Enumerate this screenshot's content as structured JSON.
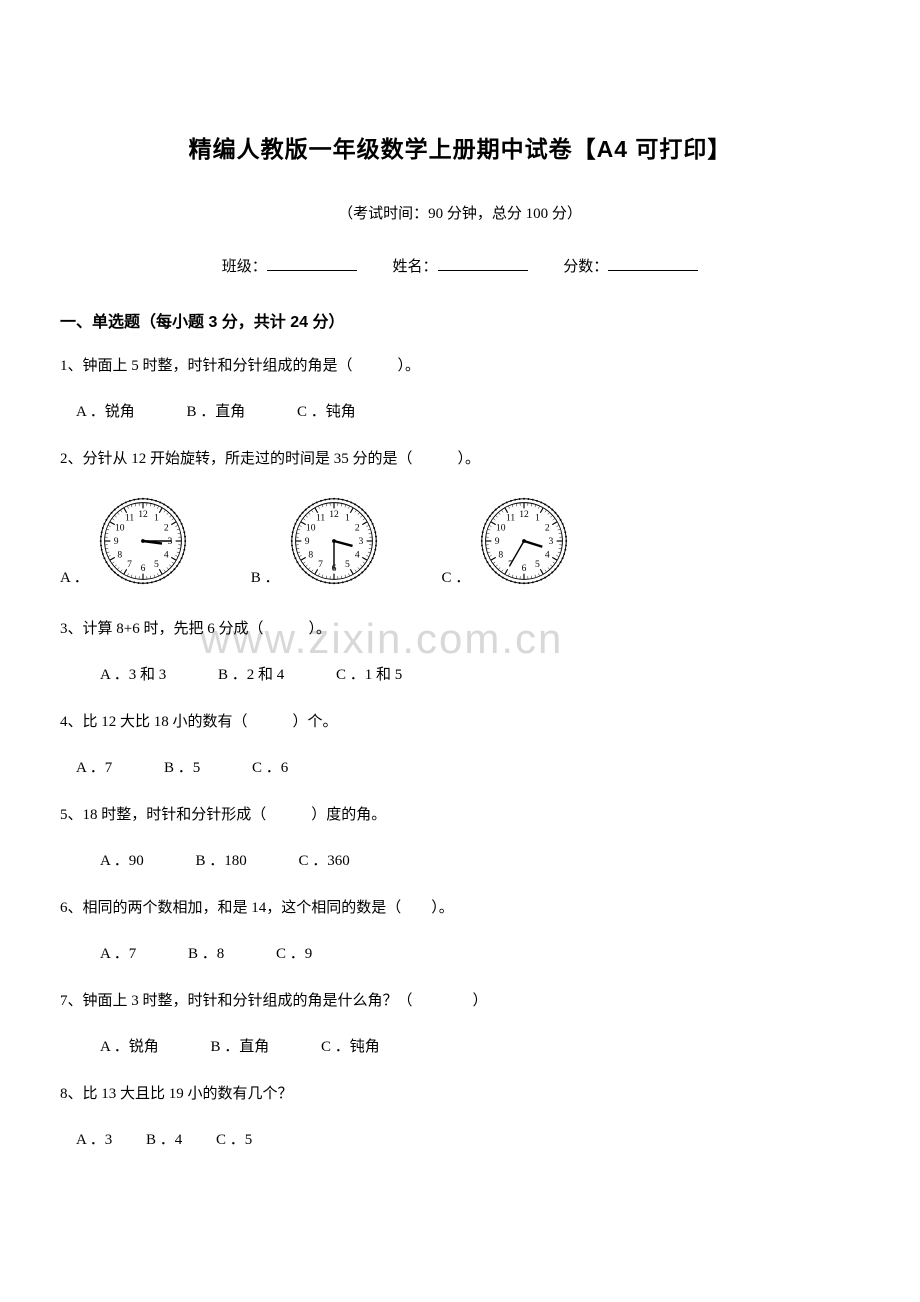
{
  "title": "精编人教版一年级数学上册期中试卷【A4 可打印】",
  "subtitle": "（考试时间：90 分钟，总分 100 分）",
  "info_labels": {
    "class": "班级：",
    "name": "姓名：",
    "score": "分数："
  },
  "section1_header": "一、单选题（每小题 3 分，共计 24 分）",
  "q1": {
    "text": "1、钟面上 5 时整，时针和分针组成的角是（　　　）。",
    "opts": [
      "A ．锐角",
      "B ．直角",
      "C ．钝角"
    ]
  },
  "q2": {
    "text": "2、分针从 12 开始旋转，所走过的时间是 35 分的是（　　　）。",
    "labels": [
      "A ．",
      "B ．",
      "C ．"
    ]
  },
  "q3": {
    "text": "3、计算 8+6 时，先把 6 分成（　　　）。",
    "opts": [
      "A ．3 和 3",
      "B ．2 和 4",
      "C ．1 和 5"
    ]
  },
  "q4": {
    "text": "4、比 12 大比 18 小的数有（　　　）个。",
    "opts": [
      "A ．7",
      "B ．5",
      "C ．6"
    ]
  },
  "q5": {
    "text": "5、18 时整，时针和分针形成（　　　）度的角。",
    "opts": [
      "A ．90",
      "B ．180",
      "C ．360"
    ]
  },
  "q6": {
    "text": "6、相同的两个数相加，和是 14，这个相同的数是（　　）。",
    "opts": [
      "A ．7",
      "B ．8",
      "C ．9"
    ]
  },
  "q7": {
    "text": "7、钟面上 3 时整，时针和分针组成的角是什么角？（　　　　）",
    "opts": [
      "A ．锐角",
      "B ．直角",
      "C ．钝角"
    ]
  },
  "q8": {
    "text": "8、比 13 大且比 19 小的数有几个？",
    "opts": [
      "A ．3",
      "B ．4",
      "C ．5"
    ]
  },
  "watermark": "www.zixin.com.cn",
  "clocks": {
    "bg": "#ffffff",
    "stroke": "#000000",
    "config": [
      {
        "minute_angle": 90,
        "hour_angle": 97.5
      },
      {
        "minute_angle": 180,
        "hour_angle": 105
      },
      {
        "minute_angle": 210,
        "hour_angle": 107.5
      }
    ],
    "radius": 42,
    "numbers": [
      "12",
      "1",
      "2",
      "3",
      "4",
      "5",
      "6",
      "7",
      "8",
      "9",
      "10",
      "11"
    ],
    "num_fontsize": 10
  }
}
